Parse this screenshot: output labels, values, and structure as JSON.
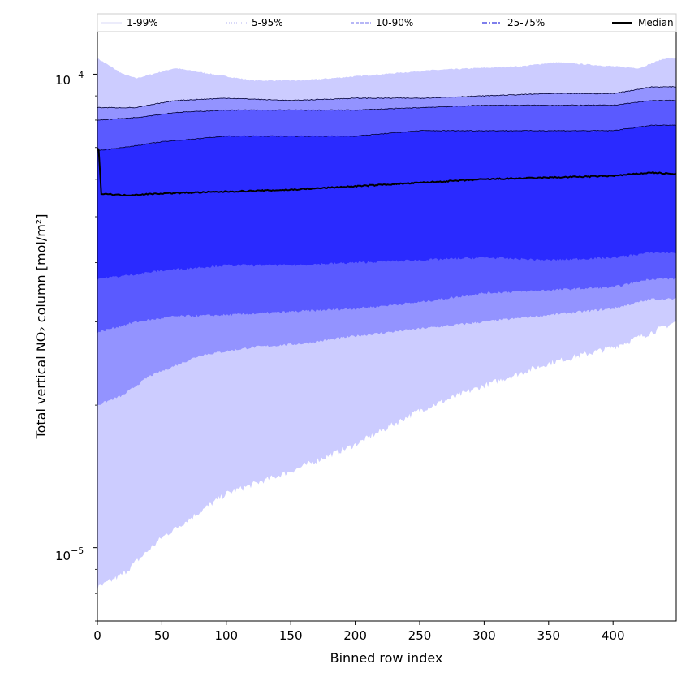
{
  "chart_data": {
    "type": "area",
    "title": "",
    "xlabel": "Binned row index",
    "ylabel": "Total vertical NO₂ column [mol/m²]",
    "yscale": "log",
    "xlim": [
      0,
      449
    ],
    "ylim": [
      7e-06,
      0.000123
    ],
    "x_ticks": [
      0,
      50,
      100,
      150,
      200,
      250,
      300,
      350,
      400
    ],
    "y_major_ticks": [
      {
        "value": 0.0001,
        "base": "10",
        "exp": "−4"
      },
      {
        "value": 1e-05,
        "base": "10",
        "exp": "−5"
      }
    ],
    "legend": [
      {
        "label": "1-99%",
        "color": "#d9d9f7",
        "style": "solid"
      },
      {
        "label": "5-95%",
        "color": "#b3b3f0",
        "style": "dotted"
      },
      {
        "label": "10-90%",
        "color": "#8c8cf0",
        "style": "dashed"
      },
      {
        "label": "25-75%",
        "color": "#5555e6",
        "style": "dashdot"
      },
      {
        "label": "Median",
        "color": "#000000",
        "style": "solid"
      }
    ],
    "bands": [
      {
        "name": "1-99%",
        "fill": "#ccccff",
        "upper": {
          "x": [
            0,
            20,
            30,
            60,
            120,
            160,
            260,
            330,
            355,
            420,
            440,
            449
          ],
          "y": [
            0.000108,
            0.0001,
            9.8e-05,
            0.000103,
            9.7e-05,
            9.7e-05,
            0.000102,
            0.000104,
            0.000106,
            0.000103,
            0.000108,
            0.000108
          ]
        },
        "lower": {
          "x": [
            0,
            20,
            50,
            100,
            150,
            200,
            250,
            300,
            350,
            400,
            430,
            449
          ],
          "y": [
            8.2e-06,
            8.8e-06,
            1.05e-05,
            1.3e-05,
            1.45e-05,
            1.65e-05,
            1.95e-05,
            2.2e-05,
            2.45e-05,
            2.65e-05,
            2.85e-05,
            3e-05
          ]
        }
      },
      {
        "name": "5-95%",
        "fill": "#9393ff",
        "upper": {
          "x": [
            0,
            30,
            60,
            100,
            150,
            200,
            250,
            300,
            350,
            400,
            430,
            449
          ],
          "y": [
            8.5e-05,
            8.5e-05,
            8.8e-05,
            8.9e-05,
            8.8e-05,
            8.9e-05,
            8.9e-05,
            9e-05,
            9.1e-05,
            9.1e-05,
            9.4e-05,
            9.4e-05
          ]
        },
        "lower": {
          "x": [
            0,
            20,
            40,
            80,
            120,
            160,
            200,
            250,
            300,
            350,
            400,
            430,
            449
          ],
          "y": [
            2e-05,
            2.1e-05,
            2.3e-05,
            2.55e-05,
            2.65e-05,
            2.7e-05,
            2.8e-05,
            2.9e-05,
            3e-05,
            3.1e-05,
            3.2e-05,
            3.35e-05,
            3.35e-05
          ]
        }
      },
      {
        "name": "10-90%",
        "fill": "#5a5aff",
        "upper": {
          "x": [
            0,
            30,
            60,
            100,
            150,
            200,
            250,
            300,
            350,
            400,
            430,
            449
          ],
          "y": [
            8e-05,
            8.1e-05,
            8.3e-05,
            8.4e-05,
            8.4e-05,
            8.4e-05,
            8.5e-05,
            8.6e-05,
            8.6e-05,
            8.6e-05,
            8.8e-05,
            8.8e-05
          ]
        },
        "lower": {
          "x": [
            0,
            10,
            30,
            60,
            100,
            150,
            200,
            250,
            300,
            350,
            400,
            430,
            449
          ],
          "y": [
            2.85e-05,
            2.9e-05,
            3e-05,
            3.08e-05,
            3.1e-05,
            3.15e-05,
            3.2e-05,
            3.3e-05,
            3.45e-05,
            3.5e-05,
            3.55e-05,
            3.7e-05,
            3.7e-05
          ]
        }
      },
      {
        "name": "25-75%",
        "fill": "#2a2aff",
        "upper": {
          "x": [
            0,
            20,
            50,
            100,
            150,
            200,
            250,
            300,
            350,
            400,
            430,
            449
          ],
          "y": [
            6.9e-05,
            7e-05,
            7.2e-05,
            7.4e-05,
            7.4e-05,
            7.4e-05,
            7.6e-05,
            7.6e-05,
            7.6e-05,
            7.6e-05,
            7.8e-05,
            7.8e-05
          ]
        },
        "lower": {
          "x": [
            0,
            20,
            50,
            100,
            150,
            200,
            250,
            300,
            350,
            400,
            430,
            449
          ],
          "y": [
            3.7e-05,
            3.75e-05,
            3.85e-05,
            3.95e-05,
            3.95e-05,
            4e-05,
            4.05e-05,
            4.1e-05,
            4.05e-05,
            4.1e-05,
            4.2e-05,
            4.2e-05
          ]
        }
      }
    ],
    "median": {
      "x": [
        0,
        1,
        3,
        20,
        50,
        100,
        150,
        200,
        250,
        300,
        350,
        400,
        430,
        449
      ],
      "y": [
        7e-05,
        6.9e-05,
        5.6e-05,
        5.55e-05,
        5.6e-05,
        5.65e-05,
        5.7e-05,
        5.8e-05,
        5.9e-05,
        6e-05,
        6.05e-05,
        6.1e-05,
        6.2e-05,
        6.15e-05
      ]
    }
  }
}
